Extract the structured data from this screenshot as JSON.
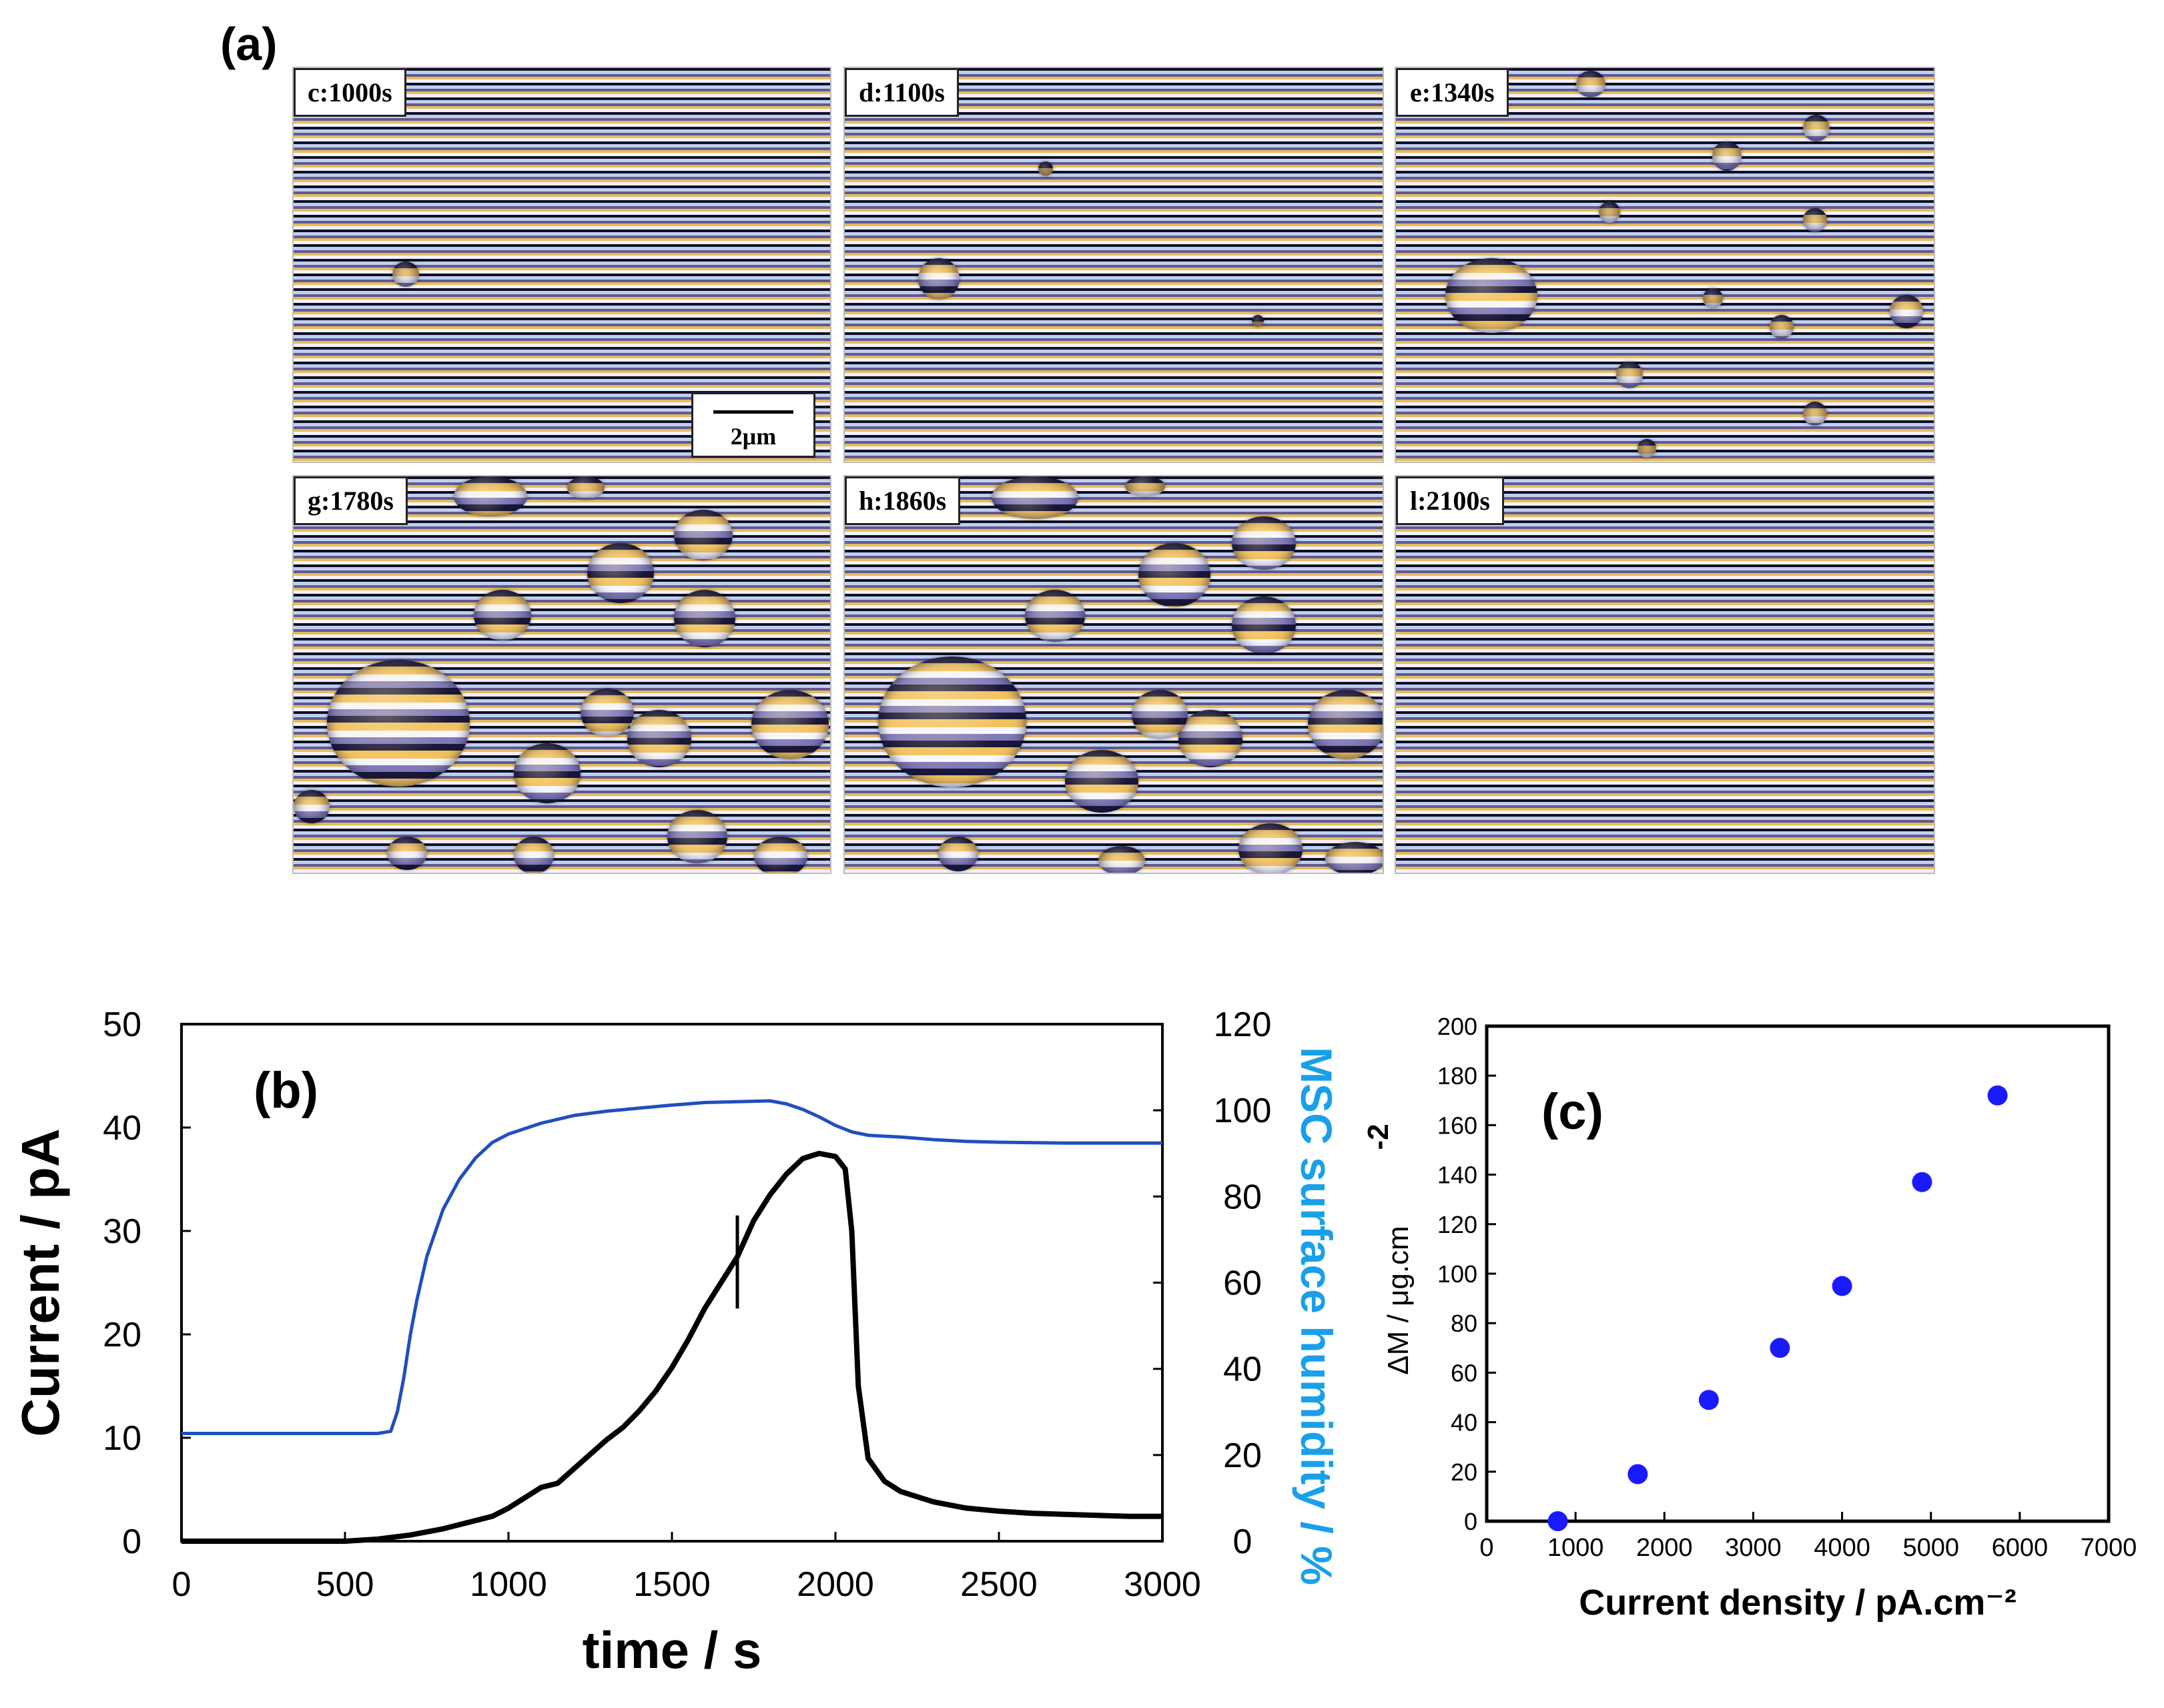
{
  "panel_a": {
    "label": "(a)",
    "images": [
      {
        "label": "c:1000s",
        "has_scalebar": true,
        "scalebar_label": "2μm"
      },
      {
        "label": "d:1100s"
      },
      {
        "label": "e:1340s"
      },
      {
        "label": "g:1780s"
      },
      {
        "label": "h:1860s"
      },
      {
        "label": "l:2100s"
      }
    ]
  },
  "chart_data": [
    {
      "type": "line",
      "panel_label": "(b)",
      "xlabel": "time / s",
      "ylabel": "Current / pA",
      "y2label": "MSC surface humidity / %",
      "xlim": [
        0,
        3000
      ],
      "ylim": [
        0,
        50
      ],
      "y2lim": [
        0,
        120
      ],
      "x_ticks": [
        0,
        500,
        1000,
        1500,
        2000,
        2500,
        3000
      ],
      "y_ticks": [
        0,
        10,
        20,
        30,
        40,
        50
      ],
      "y2_ticks": [
        0,
        20,
        40,
        60,
        80,
        100,
        120
      ],
      "series": [
        {
          "name": "MSC surface humidity",
          "axis": "right",
          "color": "#1f4fbf",
          "x": [
            0,
            600,
            640,
            660,
            680,
            700,
            720,
            750,
            800,
            850,
            900,
            950,
            1000,
            1100,
            1200,
            1300,
            1400,
            1500,
            1600,
            1700,
            1800,
            1850,
            1900,
            1950,
            2000,
            2050,
            2100,
            2200,
            2300,
            2400,
            2500,
            2600,
            2700,
            2800,
            2900,
            3000
          ],
          "values": [
            25,
            25,
            25.5,
            30,
            38,
            48,
            56,
            66,
            77,
            84,
            89,
            92.5,
            94.5,
            97,
            98.8,
            99.8,
            100.5,
            101.2,
            101.8,
            102,
            102.2,
            101.5,
            100.2,
            98.5,
            96.5,
            95,
            94.2,
            93.8,
            93.2,
            92.8,
            92.6,
            92.5,
            92.4,
            92.4,
            92.4,
            92.4
          ]
        },
        {
          "name": "Current",
          "axis": "left",
          "color": "#000000",
          "x": [
            0,
            500,
            600,
            700,
            800,
            900,
            950,
            1000,
            1050,
            1100,
            1150,
            1200,
            1250,
            1300,
            1350,
            1400,
            1450,
            1500,
            1550,
            1600,
            1650,
            1700,
            1750,
            1800,
            1850,
            1900,
            1950,
            2000,
            2030,
            2050,
            2070,
            2100,
            2150,
            2200,
            2300,
            2400,
            2500,
            2600,
            2700,
            2800,
            2900,
            3000
          ],
          "values": [
            0,
            0,
            0.2,
            0.6,
            1.2,
            2,
            2.4,
            3.2,
            4.2,
            5.2,
            5.6,
            7,
            8.4,
            9.8,
            11,
            12.6,
            14.5,
            16.8,
            19.5,
            22.5,
            25,
            27.5,
            31,
            33.5,
            35.5,
            37,
            37.5,
            37.2,
            36,
            30,
            15,
            8,
            5.8,
            4.8,
            3.8,
            3.2,
            2.9,
            2.7,
            2.6,
            2.5,
            2.4,
            2.4
          ]
        }
      ],
      "annotations": [
        {
          "type": "error_bar",
          "x": 1700,
          "y_low": 22.5,
          "y_high": 31.5
        }
      ]
    },
    {
      "type": "scatter",
      "panel_label": "(c)",
      "xlabel": "Current density  / pA.cm⁻²",
      "ylabel": "ΔM / μg.cm",
      "ylabel_superscript": "-2",
      "xlim": [
        0,
        7000
      ],
      "ylim": [
        0,
        200
      ],
      "x_ticks": [
        0,
        1000,
        2000,
        3000,
        4000,
        5000,
        6000,
        7000
      ],
      "y_ticks": [
        0,
        20,
        40,
        60,
        80,
        100,
        120,
        140,
        160,
        180,
        200
      ],
      "marker_color": "#1a1aff",
      "x": [
        800,
        1700,
        2500,
        3300,
        4000,
        4900,
        5750
      ],
      "values": [
        0,
        19,
        49,
        70,
        95,
        137,
        172
      ]
    }
  ]
}
